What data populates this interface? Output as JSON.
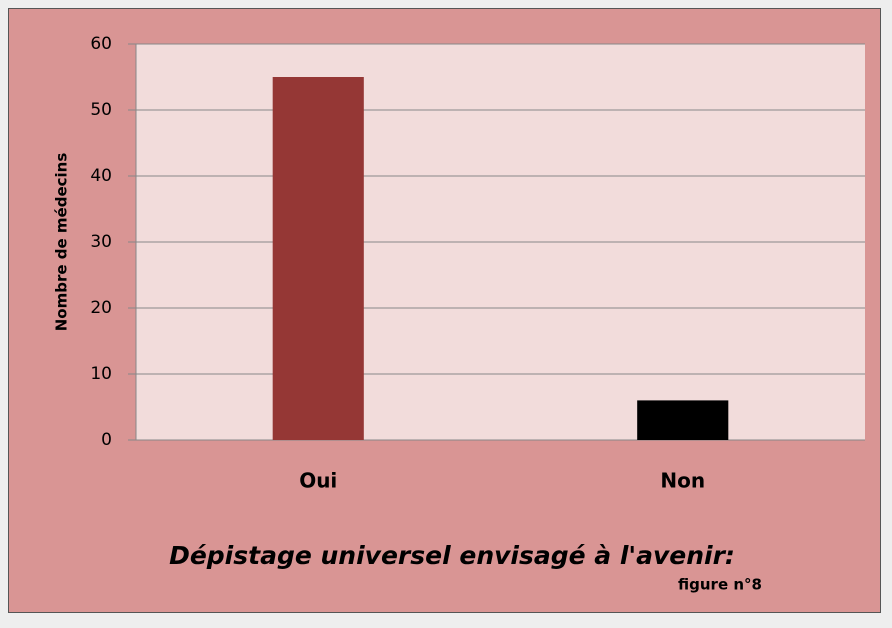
{
  "chart_data": {
    "type": "bar",
    "title": "Dépistage universel envisagé à l'avenir:",
    "subtitle": "figure n°8",
    "y_label": "Nombre de médecins",
    "categories": [
      "Oui",
      "Non"
    ],
    "values": [
      55,
      6
    ],
    "colors": [
      "#953735",
      "#000000"
    ],
    "ylim": [
      0,
      60
    ],
    "yticks": [
      0,
      10,
      20,
      30,
      40,
      50,
      60
    ],
    "grid": true
  }
}
